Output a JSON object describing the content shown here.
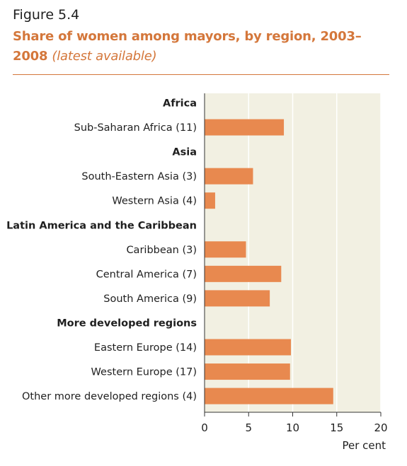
{
  "figure": {
    "label": "Figure 5.4",
    "title": "Share of women among mayors, by region, 2003–2008",
    "subtitle": "(latest available)"
  },
  "colors": {
    "accent": "#d4773b",
    "bar": "#e8894f",
    "plot_background": "#f2f0e2",
    "gridline": "#ffffff"
  },
  "chart_data": {
    "type": "bar",
    "orientation": "horizontal",
    "xlabel": "Per cent",
    "ylabel": "",
    "xlim": [
      0,
      20
    ],
    "xticks": [
      0,
      5,
      10,
      15,
      20
    ],
    "grid": true,
    "rows": [
      {
        "label": "Africa",
        "is_group_header": true,
        "value": null
      },
      {
        "label": "Sub-Saharan Africa (11)",
        "is_group_header": false,
        "value": 9.0
      },
      {
        "label": "Asia",
        "is_group_header": true,
        "value": null
      },
      {
        "label": "South-Eastern Asia (3)",
        "is_group_header": false,
        "value": 5.5
      },
      {
        "label": "Western Asia (4)",
        "is_group_header": false,
        "value": 1.2
      },
      {
        "label": "Latin America and the Caribbean",
        "is_group_header": true,
        "value": null
      },
      {
        "label": "Caribbean (3)",
        "is_group_header": false,
        "value": 4.7
      },
      {
        "label": "Central America (7)",
        "is_group_header": false,
        "value": 8.7
      },
      {
        "label": "South America (9)",
        "is_group_header": false,
        "value": 7.4
      },
      {
        "label": "More developed regions",
        "is_group_header": true,
        "value": null
      },
      {
        "label": "Eastern Europe (14)",
        "is_group_header": false,
        "value": 9.8
      },
      {
        "label": "Western Europe (17)",
        "is_group_header": false,
        "value": 9.7
      },
      {
        "label": "Other more developed regions (4)",
        "is_group_header": false,
        "value": 14.6
      }
    ]
  }
}
